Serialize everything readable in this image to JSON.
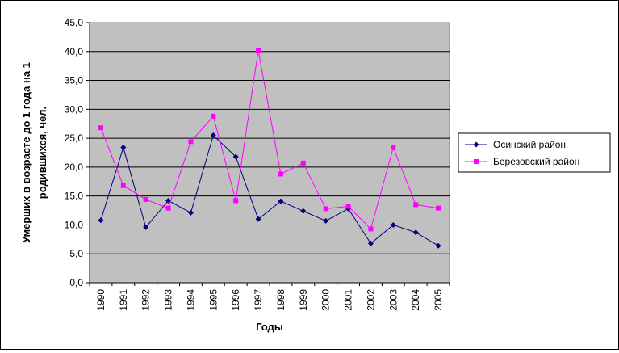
{
  "chart_data": {
    "type": "line",
    "title": "",
    "xlabel": "Годы",
    "ylabel_lines": [
      "Умерших в возрасте до 1 года на 1",
      "родившихся, чел."
    ],
    "categories": [
      "1990",
      "1991",
      "1992",
      "1993",
      "1994",
      "1995",
      "1996",
      "1997",
      "1998",
      "1999",
      "2000",
      "2001",
      "2002",
      "2003",
      "2004",
      "2005"
    ],
    "y_ticks": [
      "0,0",
      "5,0",
      "10,0",
      "15,0",
      "20,0",
      "25,0",
      "30,0",
      "35,0",
      "40,0",
      "45,0"
    ],
    "ylim": [
      0,
      45
    ],
    "grid": true,
    "legend_position": "right",
    "series": [
      {
        "name": "Осинский район",
        "color": "#000080",
        "marker": "diamond",
        "values": [
          10.8,
          23.4,
          9.6,
          14.2,
          12.1,
          25.5,
          21.8,
          11.0,
          14.1,
          12.4,
          10.7,
          12.8,
          6.8,
          10.0,
          8.7,
          6.4
        ]
      },
      {
        "name": "Березовский район",
        "color": "#ff00ff",
        "marker": "square",
        "values": [
          26.8,
          16.8,
          14.4,
          12.9,
          24.4,
          28.8,
          14.2,
          40.2,
          18.8,
          20.7,
          12.8,
          13.2,
          9.3,
          23.4,
          13.5,
          12.9
        ]
      }
    ],
    "plot_background": "#c0c0c0"
  }
}
